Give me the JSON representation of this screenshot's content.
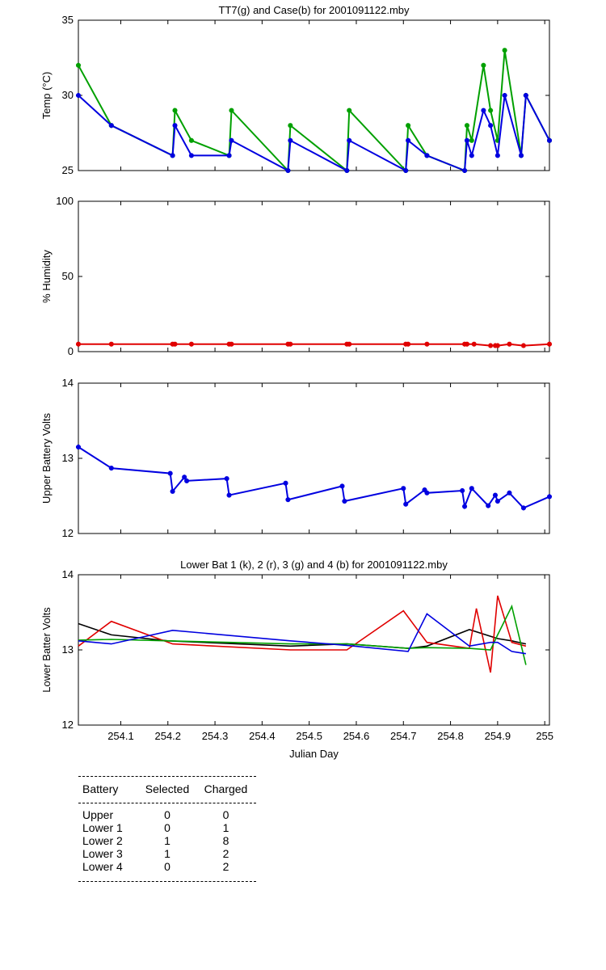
{
  "chart_data": [
    {
      "type": "line",
      "title": "TT7(g) and Case(b) for 2001091122.mby",
      "ylabel": "Temp  (°C)",
      "xlim": [
        254.01,
        255.01
      ],
      "ylim": [
        25,
        35
      ],
      "yticks": [
        25,
        30,
        35
      ],
      "series": [
        {
          "name": "TT7",
          "color": "#00a000",
          "marker": true,
          "x": [
            254.01,
            254.08,
            254.21,
            254.215,
            254.25,
            254.33,
            254.335,
            254.455,
            254.46,
            254.58,
            254.585,
            254.705,
            254.71,
            254.75,
            254.83,
            254.835,
            254.845,
            254.87,
            254.885,
            254.9,
            254.915,
            254.95,
            254.96,
            255.01
          ],
          "y": [
            32,
            28,
            26,
            29,
            27,
            26,
            29,
            25,
            28,
            25,
            29,
            25,
            28,
            26,
            25,
            28,
            27,
            32,
            29,
            27,
            33,
            26,
            30,
            27
          ]
        },
        {
          "name": "Case",
          "color": "#0000e0",
          "marker": true,
          "x": [
            254.01,
            254.08,
            254.21,
            254.215,
            254.25,
            254.33,
            254.335,
            254.455,
            254.46,
            254.58,
            254.585,
            254.705,
            254.71,
            254.75,
            254.83,
            254.835,
            254.845,
            254.87,
            254.885,
            254.9,
            254.915,
            254.95,
            254.96,
            255.01
          ],
          "y": [
            30,
            28,
            26,
            28,
            26,
            26,
            27,
            25,
            27,
            25,
            27,
            25,
            27,
            26,
            25,
            27,
            26,
            29,
            28,
            26,
            30,
            26,
            30,
            27
          ]
        }
      ]
    },
    {
      "type": "line",
      "title": "",
      "ylabel": "% Humidity",
      "xlim": [
        254.01,
        255.01
      ],
      "ylim": [
        0,
        100
      ],
      "yticks": [
        0,
        50,
        100
      ],
      "series": [
        {
          "name": "Humidity",
          "color": "#e00000",
          "marker": true,
          "x": [
            254.01,
            254.08,
            254.21,
            254.215,
            254.25,
            254.33,
            254.335,
            254.455,
            254.46,
            254.58,
            254.585,
            254.705,
            254.71,
            254.75,
            254.83,
            254.835,
            254.85,
            254.885,
            254.895,
            254.9,
            254.925,
            254.955,
            255.01
          ],
          "y": [
            5,
            5,
            5,
            5,
            5,
            5,
            5,
            5,
            5,
            5,
            5,
            5,
            5,
            5,
            5,
            5,
            5,
            4,
            4,
            4,
            5,
            4,
            5
          ]
        }
      ]
    },
    {
      "type": "line",
      "title": "",
      "ylabel": "Upper Battery Volts",
      "xlim": [
        254.01,
        255.01
      ],
      "ylim": [
        12,
        14
      ],
      "yticks": [
        12,
        13,
        14
      ],
      "series": [
        {
          "name": "Upper",
          "color": "#0000e0",
          "marker": true,
          "x": [
            254.01,
            254.08,
            254.205,
            254.21,
            254.235,
            254.24,
            254.325,
            254.33,
            254.45,
            254.455,
            254.57,
            254.575,
            254.7,
            254.705,
            254.745,
            254.75,
            254.825,
            254.83,
            254.845,
            254.88,
            254.895,
            254.9,
            254.925,
            254.955,
            255.01
          ],
          "y": [
            13.15,
            12.87,
            12.8,
            12.56,
            12.75,
            12.7,
            12.73,
            12.51,
            12.67,
            12.45,
            12.63,
            12.43,
            12.6,
            12.39,
            12.58,
            12.54,
            12.57,
            12.36,
            12.6,
            12.37,
            12.51,
            12.43,
            12.54,
            12.34,
            12.49
          ]
        }
      ]
    },
    {
      "type": "line",
      "title": "Lower Bat 1 (k), 2 (r), 3 (g) and 4 (b) for 2001091122.mby",
      "xlabel": "Julian Day",
      "ylabel": "Lower Batter Volts",
      "xlim": [
        254.01,
        255.01
      ],
      "ylim": [
        12,
        14
      ],
      "yticks": [
        12,
        13,
        14
      ],
      "xticks": [
        254.1,
        254.2,
        254.3,
        254.4,
        254.5,
        254.6,
        254.7,
        254.8,
        254.9,
        255
      ],
      "series": [
        {
          "name": "Lower 1",
          "color": "#000000",
          "marker": false,
          "x": [
            254.01,
            254.08,
            254.2,
            254.46,
            254.58,
            254.71,
            254.75,
            254.84,
            254.9,
            254.93,
            254.96
          ],
          "y": [
            13.35,
            13.2,
            13.12,
            13.05,
            13.08,
            13.02,
            13.05,
            13.27,
            13.15,
            13.12,
            13.08
          ]
        },
        {
          "name": "Lower 2",
          "color": "#e00000",
          "marker": false,
          "x": [
            254.01,
            254.08,
            254.21,
            254.46,
            254.58,
            254.7,
            254.75,
            254.84,
            254.855,
            254.885,
            254.9,
            254.93,
            254.96
          ],
          "y": [
            13.05,
            13.38,
            13.08,
            13.0,
            13.0,
            13.52,
            13.1,
            13.02,
            13.55,
            12.7,
            13.72,
            13.1,
            13.05
          ]
        },
        {
          "name": "Lower 3",
          "color": "#00a000",
          "marker": false,
          "x": [
            254.01,
            254.08,
            254.2,
            254.46,
            254.58,
            254.71,
            254.75,
            254.84,
            254.885,
            254.9,
            254.93,
            254.96
          ],
          "y": [
            13.13,
            13.14,
            13.12,
            13.08,
            13.08,
            13.02,
            13.03,
            13.02,
            13.0,
            13.2,
            13.58,
            12.8
          ]
        },
        {
          "name": "Lower 4",
          "color": "#0000e0",
          "marker": false,
          "x": [
            254.01,
            254.08,
            254.21,
            254.46,
            254.58,
            254.71,
            254.75,
            254.84,
            254.885,
            254.9,
            254.93,
            254.96
          ],
          "y": [
            13.12,
            13.08,
            13.26,
            13.12,
            13.06,
            12.98,
            13.48,
            13.05,
            13.1,
            13.1,
            12.98,
            12.95
          ]
        }
      ]
    }
  ],
  "table": {
    "headers": [
      "Battery",
      "Selected",
      "Charged"
    ],
    "rows": [
      {
        "name": "Upper",
        "selected": "0",
        "charged": "0"
      },
      {
        "name": "Lower 1",
        "selected": "0",
        "charged": "1"
      },
      {
        "name": "Lower 2",
        "selected": "1",
        "charged": "8"
      },
      {
        "name": "Lower 3",
        "selected": "1",
        "charged": "2"
      },
      {
        "name": "Lower 4",
        "selected": "0",
        "charged": "2"
      }
    ]
  }
}
